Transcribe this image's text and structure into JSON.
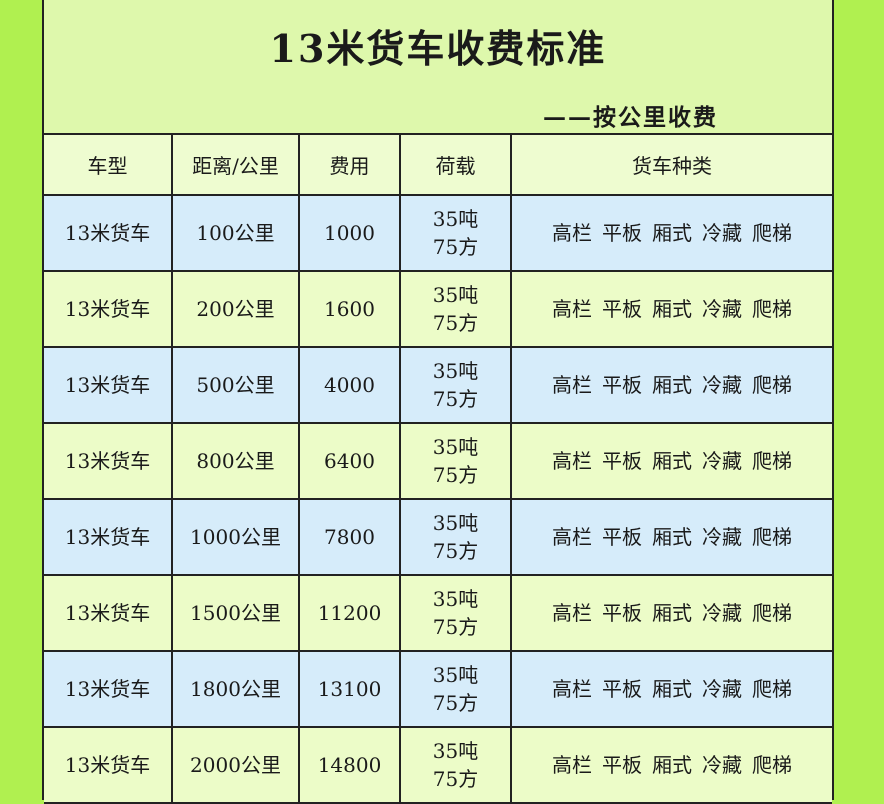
{
  "title": "13米货车收费标准",
  "subtitle": "——按公里收费",
  "columns": [
    "车型",
    "距离/公里",
    "费用",
    "荷载",
    "货车种类"
  ],
  "rows": [
    {
      "type": "13米货车",
      "distance": "100公里",
      "fee": "1000",
      "load1": "35吨",
      "load2": "75方",
      "kinds": [
        "高栏",
        "平板",
        "厢式",
        "冷藏",
        "爬梯"
      ]
    },
    {
      "type": "13米货车",
      "distance": "200公里",
      "fee": "1600",
      "load1": "35吨",
      "load2": "75方",
      "kinds": [
        "高栏",
        "平板",
        "厢式",
        "冷藏",
        "爬梯"
      ]
    },
    {
      "type": "13米货车",
      "distance": "500公里",
      "fee": "4000",
      "load1": "35吨",
      "load2": "75方",
      "kinds": [
        "高栏",
        "平板",
        "厢式",
        "冷藏",
        "爬梯"
      ]
    },
    {
      "type": "13米货车",
      "distance": "800公里",
      "fee": "6400",
      "load1": "35吨",
      "load2": "75方",
      "kinds": [
        "高栏",
        "平板",
        "厢式",
        "冷藏",
        "爬梯"
      ]
    },
    {
      "type": "13米货车",
      "distance": "1000公里",
      "fee": "7800",
      "load1": "35吨",
      "load2": "75方",
      "kinds": [
        "高栏",
        "平板",
        "厢式",
        "冷藏",
        "爬梯"
      ]
    },
    {
      "type": "13米货车",
      "distance": "1500公里",
      "fee": "11200",
      "load1": "35吨",
      "load2": "75方",
      "kinds": [
        "高栏",
        "平板",
        "厢式",
        "冷藏",
        "爬梯"
      ]
    },
    {
      "type": "13米货车",
      "distance": "1800公里",
      "fee": "13100",
      "load1": "35吨",
      "load2": "75方",
      "kinds": [
        "高栏",
        "平板",
        "厢式",
        "冷藏",
        "爬梯"
      ]
    },
    {
      "type": "13米货车",
      "distance": "2000公里",
      "fee": "14800",
      "load1": "35吨",
      "load2": "75方",
      "kinds": [
        "高栏",
        "平板",
        "厢式",
        "冷藏",
        "爬梯"
      ]
    }
  ],
  "colors": {
    "outer": "#b0f050",
    "row_blue": "#d6ecfa",
    "row_yellow": "#ecfcc8"
  }
}
